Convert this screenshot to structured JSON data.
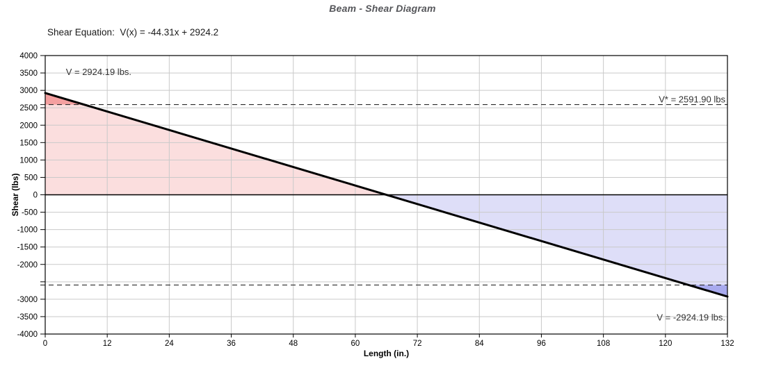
{
  "chart_data": {
    "type": "line",
    "title": "Beam - Shear Diagram",
    "equation_label": "Shear Equation:  V(x) = -44.31x + 2924.2",
    "equation": "V(x) = -44.31x + 2924.2",
    "xlabel": "Length (in.)",
    "ylabel": "Shear (lbs)",
    "xlim": [
      0,
      132
    ],
    "ylim": [
      -4000,
      4000
    ],
    "x_ticks": [
      0,
      12,
      24,
      36,
      48,
      60,
      72,
      84,
      96,
      108,
      120,
      132
    ],
    "y_ticks": [
      4000,
      3500,
      3000,
      2500,
      2000,
      1500,
      1000,
      500,
      0,
      -500,
      -1000,
      -1500,
      -2000,
      -2500,
      -3000,
      -3500,
      -4000
    ],
    "y_tick_labels": [
      "4000",
      "3500",
      "3000",
      "2500",
      "2000",
      "1500",
      "1000",
      "500",
      "0",
      "-500",
      "-1000",
      "-1500",
      "-2000",
      "",
      "-3000",
      "-3500",
      "-4000"
    ],
    "grid": true,
    "legend": "none",
    "series": [
      {
        "name": "Shear V(x)",
        "x": [
          0,
          132
        ],
        "y": [
          2924.19,
          -2924.19
        ],
        "color": "#000000",
        "width": 3
      }
    ],
    "zero_crossing_x": 66,
    "reference_lines": [
      {
        "name": "allowable-shear-positive",
        "value": 2591.9,
        "style": "dashed"
      },
      {
        "name": "allowable-shear-negative",
        "value": -2591.9,
        "style": "dashed"
      }
    ],
    "annotations": [
      {
        "text": "V = 2924.19 lbs.",
        "x": 4,
        "y": 3440,
        "anchor": "start"
      },
      {
        "text": "V* = 2591.90 lbs",
        "x": 131.6,
        "y": 2650,
        "anchor": "end"
      },
      {
        "text": "V = -2924.19 lbs.",
        "x": 131.6,
        "y": -3610,
        "anchor": "end"
      }
    ],
    "colors": {
      "line": "#000000",
      "grid": "#c9c9c9",
      "zero_axis": "#000000",
      "reference_dash": "#2b2b2b",
      "positive_fill": "#fbdede",
      "positive_peak_fill": "#f4a0a0",
      "negative_fill": "#dedef8",
      "negative_peak_fill": "#a8aaee",
      "title_color": "#55565a",
      "text_color": "#333333",
      "tick_label_color": "#000000"
    }
  }
}
